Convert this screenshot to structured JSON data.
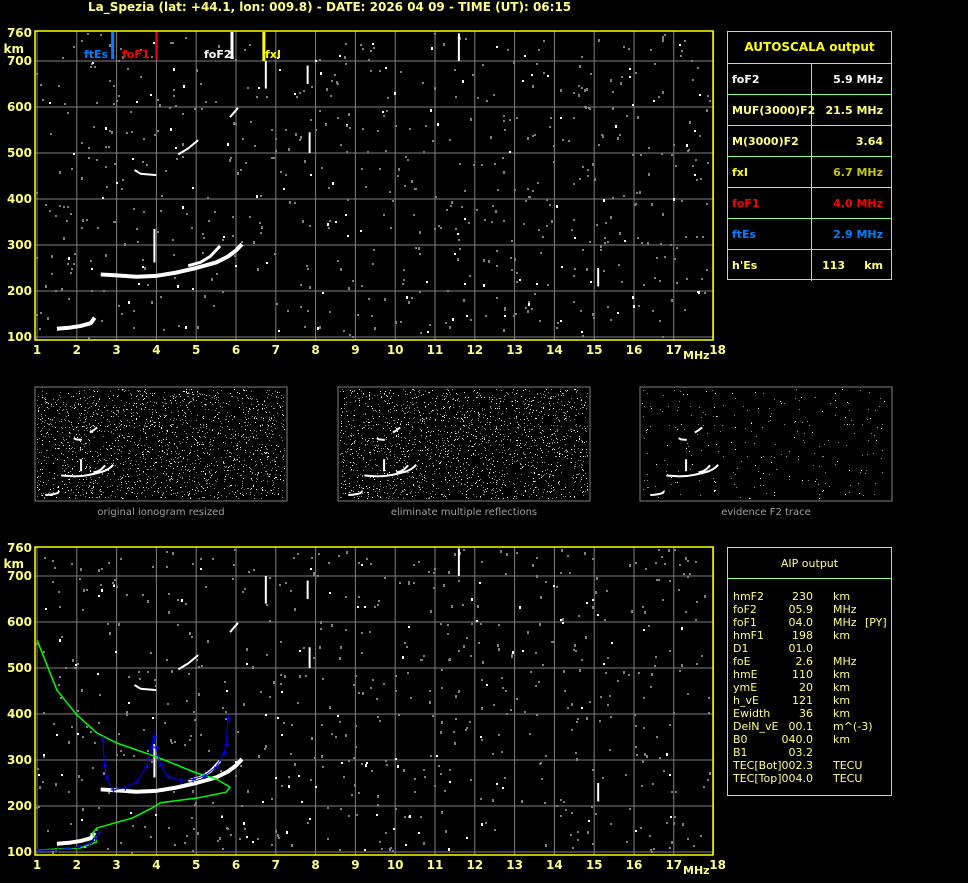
{
  "title": "La_Spezia (lat: +44.1, lon: 009.8) - DATE: 2026 04 09 - TIME (UT): 06:15",
  "colors": {
    "axis": "#ffff00",
    "label": "#ffff80",
    "grid": "#808080",
    "table_border": "#80ff80",
    "ftEs": "#0080ff",
    "foF1": "#ff0000",
    "foF2": "#ffffff",
    "fxI": "#ffff00",
    "profile": "#00ff00",
    "aip_trace": "#0000ff"
  },
  "chart_data": [
    {
      "type": "scatter",
      "name_label": "main-ionogram",
      "xlabel": "MHz",
      "ylabel": "km",
      "xlim": [
        1,
        18
      ],
      "ylim": [
        100,
        760
      ],
      "xticks": [
        "1",
        "2",
        "3",
        "4",
        "5",
        "6",
        "7",
        "8",
        "9",
        "10",
        "11",
        "12",
        "13",
        "14",
        "15",
        "16",
        "17",
        "18"
      ],
      "yticks": [
        "760",
        "700",
        "600",
        "500",
        "400",
        "300",
        "200",
        "100"
      ],
      "grid": true,
      "markers": [
        {
          "label": "ftEs",
          "freq": 2.9,
          "color": "#0080ff"
        },
        {
          "label": "foF1",
          "freq": 4.0,
          "color": "#ff0000"
        },
        {
          "label": "foF2",
          "freq": 5.9,
          "color": "#ffffff"
        },
        {
          "label": "fxI",
          "freq": 6.7,
          "color": "#ffff00"
        }
      ]
    },
    {
      "type": "scatter",
      "name_label": "aip-ionogram",
      "xlabel": "MHz",
      "ylabel": "km",
      "xlim": [
        1,
        18
      ],
      "ylim": [
        100,
        760
      ],
      "grid": true,
      "profile_curve": [
        [
          1,
          561
        ],
        [
          1.5,
          452
        ],
        [
          2,
          398
        ],
        [
          2.5,
          359
        ],
        [
          3,
          337
        ],
        [
          4,
          307
        ],
        [
          5,
          272
        ],
        [
          5.5,
          259
        ],
        [
          5.85,
          241
        ],
        [
          5.75,
          230
        ],
        [
          5,
          217
        ],
        [
          4.1,
          207
        ],
        [
          3.9,
          196
        ],
        [
          3.4,
          174
        ],
        [
          2.5,
          152
        ],
        [
          2.4,
          141
        ],
        [
          2.5,
          122
        ],
        [
          2.1,
          109
        ],
        [
          1,
          104
        ]
      ],
      "aip_trace_es": [
        [
          1,
          104
        ],
        [
          1.5,
          105
        ],
        [
          2,
          110
        ],
        [
          2.3,
          118
        ],
        [
          2.45,
          130
        ],
        [
          2.55,
          141
        ]
      ],
      "aip_trace_f": [
        [
          2.65,
          346
        ],
        [
          2.7,
          287
        ],
        [
          2.75,
          261
        ],
        [
          2.9,
          235
        ],
        [
          3.2,
          239
        ],
        [
          3.5,
          252
        ],
        [
          3.75,
          285
        ],
        [
          3.88,
          328
        ],
        [
          3.93,
          350
        ],
        [
          4.0,
          326
        ],
        [
          4.1,
          289
        ],
        [
          4.3,
          263
        ],
        [
          4.6,
          256
        ],
        [
          4.9,
          258
        ],
        [
          5.2,
          265
        ],
        [
          5.5,
          285
        ],
        [
          5.7,
          315
        ],
        [
          5.75,
          333
        ],
        [
          5.8,
          391
        ]
      ]
    }
  ],
  "ionogram_traces": {
    "es": [
      [
        1.5,
        118
      ],
      [
        1.8,
        120
      ],
      [
        2.1,
        124
      ],
      [
        2.35,
        130
      ],
      [
        2.45,
        142
      ]
    ],
    "f_main": [
      [
        2.6,
        236
      ],
      [
        3.0,
        234
      ],
      [
        3.5,
        231
      ],
      [
        4.0,
        233
      ],
      [
        4.5,
        240
      ],
      [
        5.0,
        250
      ],
      [
        5.5,
        262
      ],
      [
        5.8,
        275
      ],
      [
        6.0,
        288
      ],
      [
        6.15,
        302
      ]
    ],
    "f_upper": [
      [
        4.8,
        255
      ],
      [
        5.1,
        262
      ],
      [
        5.35,
        275
      ],
      [
        5.6,
        298
      ]
    ],
    "cusp": [
      [
        3.95,
        262
      ],
      [
        3.95,
        335
      ]
    ],
    "second_hop": [
      [
        3.45,
        463
      ],
      [
        3.6,
        455
      ],
      [
        4.0,
        452
      ]
    ],
    "second_hop2": [
      [
        4.55,
        497
      ],
      [
        4.8,
        510
      ],
      [
        5.05,
        528
      ]
    ],
    "second_hop3": [
      [
        5.85,
        578
      ],
      [
        6.05,
        598
      ]
    ],
    "spikes": [
      [
        [
          6.75,
          640
        ],
        [
          6.75,
          700
        ]
      ],
      [
        [
          7.8,
          650
        ],
        [
          7.8,
          690
        ]
      ],
      [
        [
          7.85,
          500
        ],
        [
          7.85,
          545
        ]
      ],
      [
        [
          11.6,
          700
        ],
        [
          11.6,
          760
        ]
      ],
      [
        [
          15.1,
          210
        ],
        [
          15.1,
          250
        ]
      ]
    ]
  },
  "thumbnails": [
    {
      "label": "original ionogram resized"
    },
    {
      "label": "eliminate multiple reflections"
    },
    {
      "label": "evidence F2 trace"
    }
  ],
  "autoscala": {
    "header": "AUTOSCALA output",
    "rows": [
      {
        "key": "foF2",
        "value": "5.9 MHz",
        "key_color": "#ffffff",
        "value_color": "#ffffff"
      },
      {
        "key": "MUF(3000)F2",
        "value": "21.5 MHz",
        "key_color": "#ffff80",
        "value_color": "#ffff80"
      },
      {
        "key": "M(3000)F2",
        "value": "3.64",
        "key_color": "#ffff80",
        "value_color": "#ffff80"
      },
      {
        "key": "fxI",
        "value": "6.7 MHz",
        "key_color": "#ffff00",
        "value_color": "#c8c800"
      },
      {
        "key": "foF1",
        "value": "4.0 MHz",
        "key_color": "#ff0000",
        "value_color": "#ff0000"
      },
      {
        "key": "ftEs",
        "value": "2.9 MHz",
        "key_color": "#0080ff",
        "value_color": "#0080ff"
      },
      {
        "key": "h'Es",
        "value": "113     km",
        "key_color": "#ffff80",
        "value_color": "#ffff80"
      }
    ]
  },
  "aip": {
    "header": "AIP output",
    "rows": [
      {
        "key": "hmF2",
        "value": "230",
        "unit": "km",
        "extra": ""
      },
      {
        "key": "foF2",
        "value": "05.9",
        "unit": "MHz",
        "extra": ""
      },
      {
        "key": "foF1",
        "value": "04.0",
        "unit": "MHz",
        "extra": "[PY]"
      },
      {
        "key": "hmF1",
        "value": "198",
        "unit": "km",
        "extra": ""
      },
      {
        "key": "D1",
        "value": "01.0",
        "unit": "",
        "extra": ""
      },
      {
        "key": "foE",
        "value": "2.6",
        "unit": "MHz",
        "extra": ""
      },
      {
        "key": "hmE",
        "value": "110",
        "unit": "km",
        "extra": ""
      },
      {
        "key": "ymE",
        "value": "20",
        "unit": "km",
        "extra": ""
      },
      {
        "key": "h_vE",
        "value": "121",
        "unit": "km",
        "extra": ""
      },
      {
        "key": "Ewidth",
        "value": "36",
        "unit": "km",
        "extra": ""
      },
      {
        "key": "DelN_vE",
        "value": "00.1",
        "unit": "m^(-3)",
        "extra": ""
      },
      {
        "key": "B0",
        "value": "040.0",
        "unit": "km",
        "extra": ""
      },
      {
        "key": "B1",
        "value": "03.2",
        "unit": "",
        "extra": ""
      },
      {
        "key": "TEC[Bot]",
        "value": "002.3",
        "unit": "TECU",
        "extra": ""
      },
      {
        "key": "TEC[Top]",
        "value": "004.0",
        "unit": "TECU",
        "extra": ""
      }
    ]
  }
}
